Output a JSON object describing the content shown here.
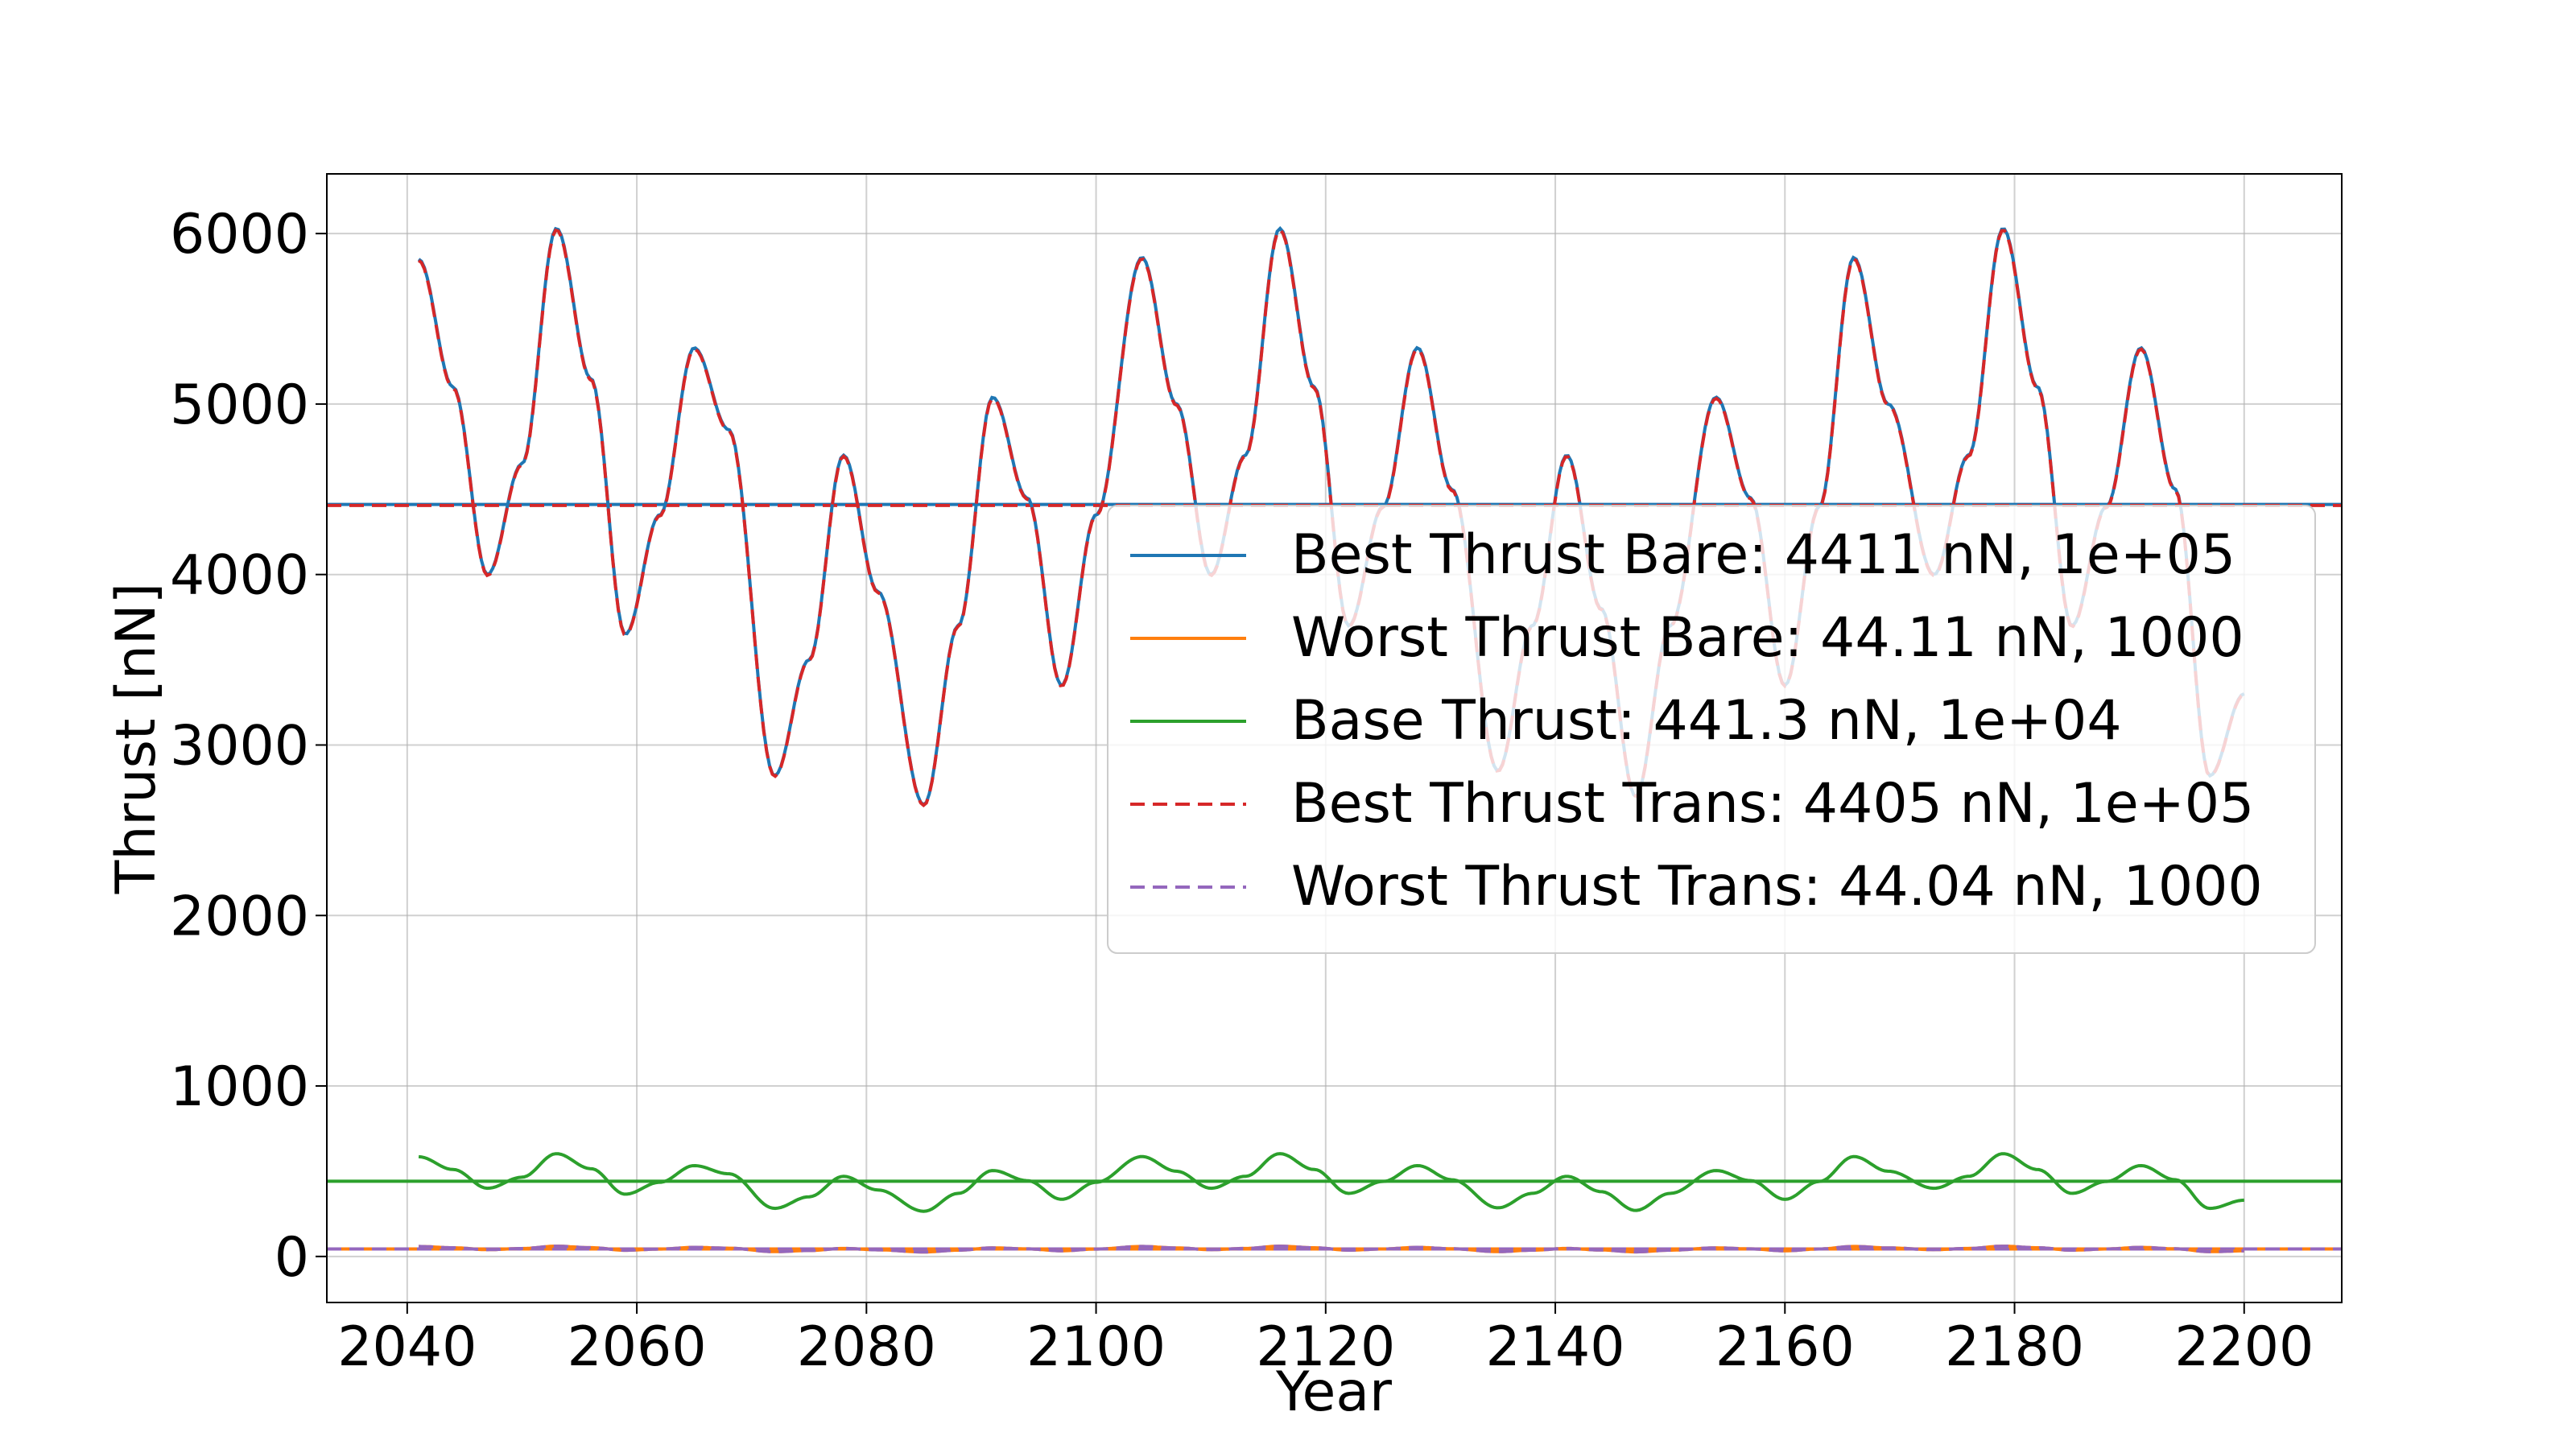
{
  "chart_data": {
    "type": "line",
    "title": "",
    "xlabel": "Year",
    "ylabel": "Thrust [nN]",
    "xlim": [
      2033,
      2208.5
    ],
    "ylim": [
      -270,
      6350
    ],
    "xticks": [
      2040,
      2060,
      2080,
      2100,
      2120,
      2140,
      2160,
      2180,
      2200
    ],
    "yticks": [
      0,
      1000,
      2000,
      3000,
      4000,
      5000,
      6000
    ],
    "grid": true,
    "legend_position": "center-right",
    "x_start": 2041,
    "x_end": 2200,
    "series": [
      {
        "name": "Best Thrust Bare: 4411 nN, 1e+05",
        "color": "#1f77b4",
        "style": "solid",
        "mean": 4411,
        "points": [
          [
            2041,
            5850
          ],
          [
            2044,
            5100
          ],
          [
            2047,
            4000
          ],
          [
            2050,
            4650
          ],
          [
            2053,
            6030
          ],
          [
            2056,
            5150
          ],
          [
            2059,
            3650
          ],
          [
            2062,
            4350
          ],
          [
            2065,
            5330
          ],
          [
            2068,
            4850
          ],
          [
            2072,
            2820
          ],
          [
            2075,
            3500
          ],
          [
            2078,
            4700
          ],
          [
            2081,
            3900
          ],
          [
            2085,
            2650
          ],
          [
            2088,
            3700
          ],
          [
            2091,
            5040
          ],
          [
            2094,
            4450
          ],
          [
            2097,
            3350
          ],
          [
            2100,
            4350
          ],
          [
            2104,
            5860
          ],
          [
            2107,
            5000
          ],
          [
            2110,
            4000
          ],
          [
            2113,
            4700
          ],
          [
            2116,
            6030
          ],
          [
            2119,
            5100
          ],
          [
            2122,
            3700
          ],
          [
            2125,
            4400
          ],
          [
            2128,
            5330
          ],
          [
            2131,
            4500
          ],
          [
            2135,
            2850
          ],
          [
            2138,
            3700
          ],
          [
            2141,
            4700
          ],
          [
            2144,
            3800
          ],
          [
            2147,
            2700
          ],
          [
            2150,
            3700
          ],
          [
            2154,
            5040
          ],
          [
            2157,
            4450
          ],
          [
            2160,
            3350
          ],
          [
            2163,
            4400
          ],
          [
            2166,
            5860
          ],
          [
            2169,
            5000
          ],
          [
            2173,
            4000
          ],
          [
            2176,
            4700
          ],
          [
            2179,
            6030
          ],
          [
            2182,
            5100
          ],
          [
            2185,
            3700
          ],
          [
            2188,
            4400
          ],
          [
            2191,
            5330
          ],
          [
            2194,
            4500
          ],
          [
            2197,
            2820
          ],
          [
            2200,
            3300
          ]
        ]
      },
      {
        "name": "Worst Thrust Bare: 44.11 nN, 1000",
        "color": "#ff7f0e",
        "style": "solid",
        "mean": 44.11,
        "scale": 0.01
      },
      {
        "name": "Base Thrust: 441.3 nN, 1e+04",
        "color": "#2ca02c",
        "style": "solid",
        "mean": 441.3,
        "scale": 0.1
      },
      {
        "name": "Best Thrust Trans: 4405 nN, 1e+05",
        "color": "#d62728",
        "style": "dashed",
        "mean": 4405,
        "scale": 0.9986
      },
      {
        "name": "Worst Thrust Trans: 44.04 nN, 1000",
        "color": "#9467bd",
        "style": "dashed",
        "mean": 44.04,
        "scale": 0.009986
      }
    ]
  }
}
